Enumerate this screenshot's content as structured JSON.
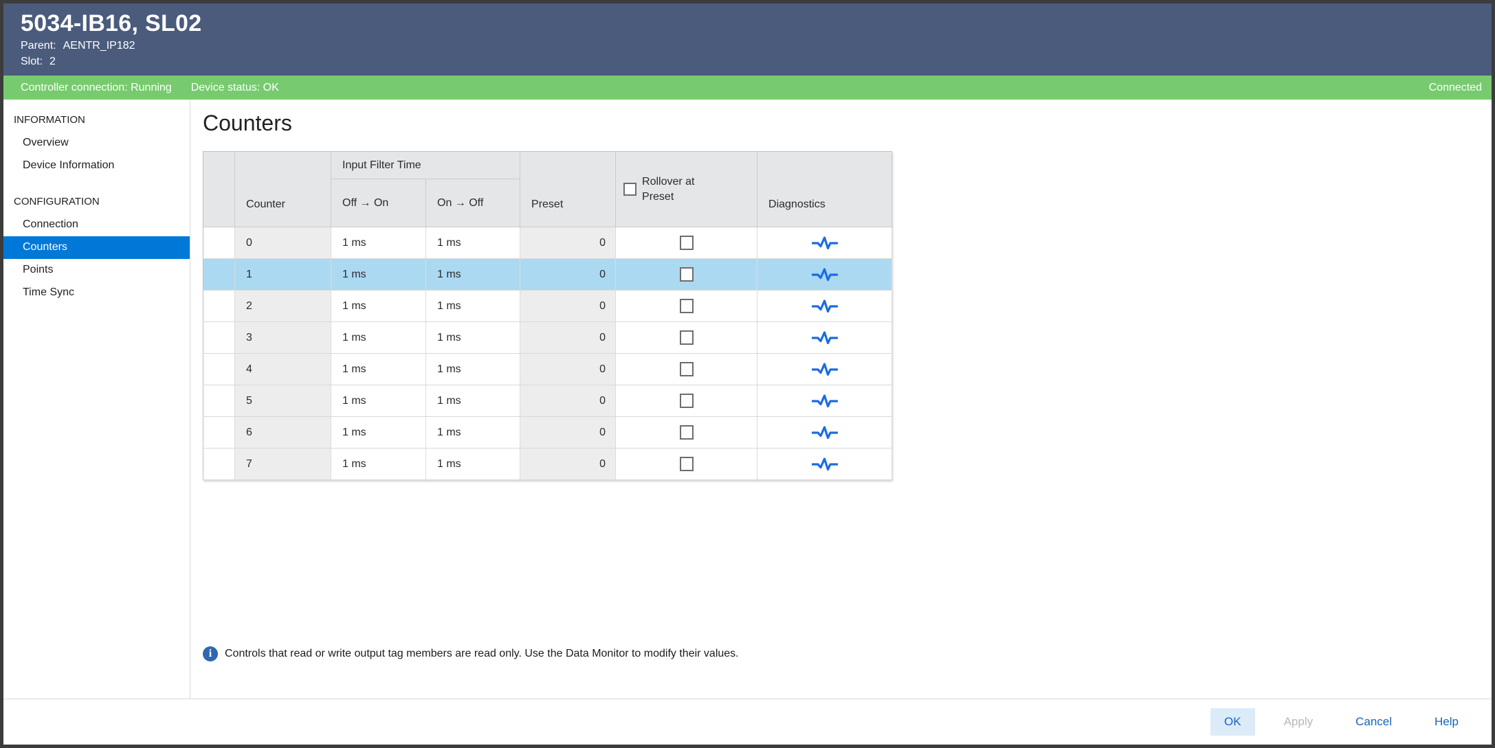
{
  "window": {
    "title": "5034-IB16, SL02",
    "parent_label": "Parent:",
    "parent_value": "AENTR_IP182",
    "slot_label": "Slot:",
    "slot_value": "2"
  },
  "status_bar": {
    "controller_connection": "Controller connection: Running",
    "device_status": "Device status: OK",
    "connection_state": "Connected"
  },
  "sidebar": {
    "sections": [
      {
        "label": "INFORMATION",
        "items": [
          {
            "label": "Overview"
          },
          {
            "label": "Device Information"
          }
        ]
      },
      {
        "label": "CONFIGURATION",
        "items": [
          {
            "label": "Connection"
          },
          {
            "label": "Counters",
            "selected": true
          },
          {
            "label": "Points"
          },
          {
            "label": "Time Sync"
          }
        ]
      }
    ]
  },
  "main": {
    "title": "Counters",
    "table": {
      "header": {
        "counter": "Counter",
        "input_filter_time": "Input Filter Time",
        "off_on": "Off → On",
        "on_off": "On → Off",
        "preset": "Preset",
        "rollover": "Rollover at Preset",
        "diagnostics": "Diagnostics"
      },
      "rows": [
        {
          "counter": "0",
          "off_on": "1 ms",
          "on_off": "1 ms",
          "preset": "0",
          "rollover_checked": false,
          "selected": false
        },
        {
          "counter": "1",
          "off_on": "1 ms",
          "on_off": "1 ms",
          "preset": "0",
          "rollover_checked": false,
          "selected": true
        },
        {
          "counter": "2",
          "off_on": "1 ms",
          "on_off": "1 ms",
          "preset": "0",
          "rollover_checked": false,
          "selected": false
        },
        {
          "counter": "3",
          "off_on": "1 ms",
          "on_off": "1 ms",
          "preset": "0",
          "rollover_checked": false,
          "selected": false
        },
        {
          "counter": "4",
          "off_on": "1 ms",
          "on_off": "1 ms",
          "preset": "0",
          "rollover_checked": false,
          "selected": false
        },
        {
          "counter": "5",
          "off_on": "1 ms",
          "on_off": "1 ms",
          "preset": "0",
          "rollover_checked": false,
          "selected": false
        },
        {
          "counter": "6",
          "off_on": "1 ms",
          "on_off": "1 ms",
          "preset": "0",
          "rollover_checked": false,
          "selected": false
        },
        {
          "counter": "7",
          "off_on": "1 ms",
          "on_off": "1 ms",
          "preset": "0",
          "rollover_checked": false,
          "selected": false
        }
      ]
    },
    "note": {
      "info_glyph": "i",
      "text": "Controls that read or write output tag members are read only. Use the Data Monitor to modify their values."
    }
  },
  "footer": {
    "ok_label": "OK",
    "apply_label": "Apply",
    "cancel_label": "Cancel",
    "help_label": "Help"
  },
  "colors": {
    "title_bar": "#4b5b7c",
    "status_bar_green": "#77cb6e",
    "sidebar_selected_blue": "#0078d7",
    "selected_row_blue": "#abd9f2",
    "diagnostics_icon_blue": "#1b6ce0",
    "info_icon_blue": "#2e68b0",
    "button_text_blue": "#1464ba"
  }
}
